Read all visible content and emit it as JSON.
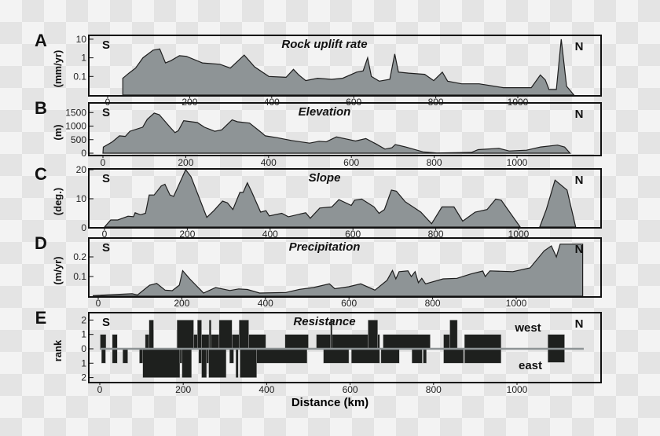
{
  "x_axis_label": "Distance (km)",
  "colors": {
    "fill": "#8e9496",
    "stroke": "#1e1e1e",
    "bar": "#1e201e",
    "zero_line": "#8e9496"
  },
  "chart_data": [
    {
      "panel": "A",
      "type": "area",
      "title": "Rock uplift rate",
      "ylabel": "(mm/yr)",
      "yscale": "log",
      "ylim": [
        0.01,
        10
      ],
      "yticks": [
        "10",
        "1",
        "0.1"
      ],
      "ytick_values": [
        10,
        1,
        0.1
      ],
      "xticks": [
        "0",
        "200",
        "400",
        "600",
        "800",
        "1000"
      ],
      "xlim": [
        0,
        1200
      ],
      "south": "S",
      "north": "N",
      "points": [
        [
          37,
          0.01
        ],
        [
          37,
          0.08
        ],
        [
          52,
          0.15
        ],
        [
          68,
          0.28
        ],
        [
          86,
          1
        ],
        [
          111,
          2.6
        ],
        [
          127,
          3
        ],
        [
          141,
          0.53
        ],
        [
          154,
          0.7
        ],
        [
          175,
          1.3
        ],
        [
          192,
          1.2
        ],
        [
          231,
          0.53
        ],
        [
          274,
          0.45
        ],
        [
          299,
          0.28
        ],
        [
          333,
          1.4
        ],
        [
          358,
          0.33
        ],
        [
          393,
          0.1
        ],
        [
          435,
          0.09
        ],
        [
          453,
          0.24
        ],
        [
          466,
          0.12
        ],
        [
          483,
          0.06
        ],
        [
          512,
          0.08
        ],
        [
          546,
          0.07
        ],
        [
          573,
          0.08
        ],
        [
          607,
          0.17
        ],
        [
          623,
          0.2
        ],
        [
          634,
          1
        ],
        [
          643,
          0.1
        ],
        [
          662,
          0.056
        ],
        [
          688,
          0.07
        ],
        [
          700,
          1.6
        ],
        [
          709,
          0.17
        ],
        [
          734,
          0.15
        ],
        [
          773,
          0.13
        ],
        [
          795,
          0.06
        ],
        [
          816,
          0.17
        ],
        [
          829,
          0.056
        ],
        [
          863,
          0.04
        ],
        [
          906,
          0.04
        ],
        [
          965,
          0.025
        ],
        [
          1033,
          0.025
        ],
        [
          1055,
          0.12
        ],
        [
          1067,
          0.065
        ],
        [
          1076,
          0.02
        ],
        [
          1094,
          0.02
        ],
        [
          1106,
          10
        ],
        [
          1119,
          0.03
        ],
        [
          1137,
          0.01
        ]
      ]
    },
    {
      "panel": "B",
      "type": "area",
      "title": "Elevation",
      "ylabel": "(m)",
      "ylim": [
        0,
        1500
      ],
      "yticks": [
        "1500",
        "1000",
        "500",
        "0"
      ],
      "ytick_values": [
        1500,
        1000,
        500,
        0
      ],
      "xticks": [
        "0",
        "200",
        "400",
        "600",
        "800",
        "1000"
      ],
      "xlim": [
        0,
        1200
      ],
      "south": "S",
      "north": "N",
      "points": [
        [
          0,
          0
        ],
        [
          1,
          225
        ],
        [
          23,
          420
        ],
        [
          40,
          640
        ],
        [
          54,
          620
        ],
        [
          65,
          810
        ],
        [
          96,
          960
        ],
        [
          107,
          1250
        ],
        [
          124,
          1480
        ],
        [
          136,
          1420
        ],
        [
          162,
          960
        ],
        [
          174,
          760
        ],
        [
          182,
          830
        ],
        [
          195,
          1200
        ],
        [
          228,
          1130
        ],
        [
          245,
          960
        ],
        [
          270,
          810
        ],
        [
          287,
          860
        ],
        [
          312,
          1230
        ],
        [
          325,
          1160
        ],
        [
          354,
          1110
        ],
        [
          379,
          810
        ],
        [
          392,
          640
        ],
        [
          421,
          570
        ],
        [
          455,
          470
        ],
        [
          499,
          370
        ],
        [
          522,
          440
        ],
        [
          539,
          420
        ],
        [
          564,
          600
        ],
        [
          589,
          520
        ],
        [
          610,
          450
        ],
        [
          635,
          540
        ],
        [
          660,
          340
        ],
        [
          681,
          150
        ],
        [
          698,
          200
        ],
        [
          706,
          320
        ],
        [
          731,
          230
        ],
        [
          773,
          50
        ],
        [
          806,
          10
        ],
        [
          890,
          30
        ],
        [
          906,
          130
        ],
        [
          956,
          180
        ],
        [
          981,
          80
        ],
        [
          1023,
          110
        ],
        [
          1057,
          230
        ],
        [
          1098,
          300
        ],
        [
          1115,
          225
        ],
        [
          1128,
          0
        ]
      ]
    },
    {
      "panel": "C",
      "type": "area",
      "title": "Slope",
      "ylabel": "(deg.)",
      "ylim": [
        0,
        20
      ],
      "yticks": [
        "20",
        "10",
        "0"
      ],
      "ytick_values": [
        20,
        10,
        0
      ],
      "xticks": [
        "0",
        "200",
        "400",
        "600",
        "800",
        "1000"
      ],
      "xlim": [
        0,
        1200
      ],
      "south": "S",
      "north": "N",
      "points": [
        [
          0,
          0
        ],
        [
          15,
          2.7
        ],
        [
          32,
          2.7
        ],
        [
          57,
          4
        ],
        [
          70,
          3.8
        ],
        [
          74,
          5.2
        ],
        [
          87,
          4.5
        ],
        [
          99,
          5
        ],
        [
          108,
          11.3
        ],
        [
          120,
          11.3
        ],
        [
          137,
          14.4
        ],
        [
          146,
          15
        ],
        [
          158,
          11.3
        ],
        [
          167,
          10.8
        ],
        [
          196,
          20
        ],
        [
          209,
          17.6
        ],
        [
          247,
          3.6
        ],
        [
          264,
          5.9
        ],
        [
          285,
          9.2
        ],
        [
          297,
          8.6
        ],
        [
          310,
          6.3
        ],
        [
          327,
          12.2
        ],
        [
          335,
          12.2
        ],
        [
          345,
          15.5
        ],
        [
          356,
          12.2
        ],
        [
          377,
          5.4
        ],
        [
          390,
          5.9
        ],
        [
          398,
          4.1
        ],
        [
          428,
          5
        ],
        [
          444,
          3.8
        ],
        [
          486,
          5.2
        ],
        [
          497,
          3.3
        ],
        [
          520,
          6.8
        ],
        [
          549,
          7.2
        ],
        [
          566,
          9.7
        ],
        [
          596,
          7.7
        ],
        [
          604,
          9.5
        ],
        [
          621,
          9.9
        ],
        [
          651,
          7.2
        ],
        [
          663,
          5
        ],
        [
          676,
          6.3
        ],
        [
          693,
          13
        ],
        [
          705,
          12.6
        ],
        [
          726,
          9
        ],
        [
          764,
          5.4
        ],
        [
          790,
          1.4
        ],
        [
          815,
          7.2
        ],
        [
          844,
          7.2
        ],
        [
          865,
          2.3
        ],
        [
          895,
          5.4
        ],
        [
          924,
          6.3
        ],
        [
          945,
          9.9
        ],
        [
          958,
          9.5
        ],
        [
          1004,
          0
        ]
      ],
      "points_north": [
        [
          1051,
          0
        ],
        [
          1067,
          6.3
        ],
        [
          1088,
          16.4
        ],
        [
          1117,
          13
        ],
        [
          1138,
          0
        ]
      ]
    },
    {
      "panel": "D",
      "type": "area",
      "title": "Precipitation",
      "ylabel": "(m/yr)",
      "ylim": [
        0,
        0.27
      ],
      "yticks": [
        "0.2",
        "0.1"
      ],
      "ytick_values": [
        0.2,
        0.1
      ],
      "xticks": [
        "0",
        "200",
        "400",
        "600",
        "800",
        "1000"
      ],
      "xlim": [
        0,
        1200
      ],
      "south": "S",
      "north": "N",
      "points": [
        [
          -12,
          0
        ],
        [
          -12,
          0.003
        ],
        [
          81,
          0.0125
        ],
        [
          94,
          0.006
        ],
        [
          123,
          0.056
        ],
        [
          140,
          0.065
        ],
        [
          160,
          0.031
        ],
        [
          177,
          0.028
        ],
        [
          194,
          0.056
        ],
        [
          202,
          0.13
        ],
        [
          219,
          0.088
        ],
        [
          252,
          0.016
        ],
        [
          281,
          0.044
        ],
        [
          315,
          0.029
        ],
        [
          336,
          0.037
        ],
        [
          357,
          0.034
        ],
        [
          386,
          0.016
        ],
        [
          449,
          0.019
        ],
        [
          482,
          0.035
        ],
        [
          515,
          0.044
        ],
        [
          553,
          0.063
        ],
        [
          566,
          0.038
        ],
        [
          599,
          0.048
        ],
        [
          628,
          0.063
        ],
        [
          662,
          0.031
        ],
        [
          691,
          0.081
        ],
        [
          704,
          0.131
        ],
        [
          712,
          0.088
        ],
        [
          720,
          0.125
        ],
        [
          741,
          0.129
        ],
        [
          749,
          0.1
        ],
        [
          758,
          0.125
        ],
        [
          766,
          0.069
        ],
        [
          774,
          0.091
        ],
        [
          783,
          0.063
        ],
        [
          825,
          0.088
        ],
        [
          858,
          0.091
        ],
        [
          891,
          0.113
        ],
        [
          920,
          0.128
        ],
        [
          926,
          0.1
        ],
        [
          937,
          0.129
        ],
        [
          992,
          0.125
        ],
        [
          1033,
          0.144
        ],
        [
          1067,
          0.231
        ],
        [
          1084,
          0.256
        ],
        [
          1096,
          0.2
        ],
        [
          1105,
          0.265
        ],
        [
          1159,
          0.265
        ],
        [
          1159,
          0
        ]
      ]
    },
    {
      "panel": "E",
      "type": "bar",
      "title": "Resistance",
      "ylabel": "rank",
      "ylim": [
        -2,
        2
      ],
      "yticks": [
        "2",
        "1",
        "0",
        "1",
        "2"
      ],
      "ytick_values": [
        2,
        1,
        0,
        -1,
        -2
      ],
      "xticks": [
        "0",
        "200",
        "400",
        "600",
        "800",
        "1000"
      ],
      "xlim": [
        0,
        1200
      ],
      "south": "S",
      "north": "N",
      "west_label": "west",
      "east_label": "east",
      "west": [
        [
          1,
          15,
          1
        ],
        [
          30,
          42,
          1
        ],
        [
          109,
          118,
          1
        ],
        [
          118,
          129,
          2
        ],
        [
          185,
          225,
          2
        ],
        [
          225,
          234,
          1
        ],
        [
          234,
          244,
          2
        ],
        [
          244,
          262,
          1
        ],
        [
          262,
          267,
          2
        ],
        [
          267,
          286,
          1
        ],
        [
          286,
          317,
          2
        ],
        [
          317,
          334,
          1
        ],
        [
          334,
          357,
          2
        ],
        [
          357,
          398,
          1
        ],
        [
          444,
          500,
          1
        ],
        [
          519,
          553,
          1
        ],
        [
          553,
          557,
          2
        ],
        [
          557,
          643,
          1
        ],
        [
          643,
          666,
          2
        ],
        [
          666,
          671,
          1
        ],
        [
          679,
          792,
          1
        ],
        [
          824,
          839,
          1
        ],
        [
          839,
          857,
          2
        ],
        [
          874,
          962,
          1
        ],
        [
          1074,
          1114,
          1
        ]
      ],
      "east": [
        [
          4,
          14,
          1
        ],
        [
          30,
          42,
          1
        ],
        [
          55,
          67,
          1
        ],
        [
          95,
          103,
          1
        ],
        [
          103,
          192,
          2
        ],
        [
          192,
          197,
          1
        ],
        [
          197,
          220,
          2
        ],
        [
          237,
          244,
          1
        ],
        [
          244,
          256,
          2
        ],
        [
          256,
          261,
          1
        ],
        [
          261,
          303,
          2
        ],
        [
          311,
          321,
          1
        ],
        [
          326,
          332,
          2
        ],
        [
          336,
          376,
          2
        ],
        [
          376,
          497,
          1
        ],
        [
          536,
          597,
          1
        ],
        [
          603,
          671,
          1
        ],
        [
          674,
          718,
          1
        ],
        [
          748,
          773,
          1
        ],
        [
          775,
          783,
          1
        ],
        [
          824,
          872,
          1
        ],
        [
          874,
          962,
          1
        ],
        [
          1074,
          1114,
          0.95
        ]
      ]
    }
  ]
}
